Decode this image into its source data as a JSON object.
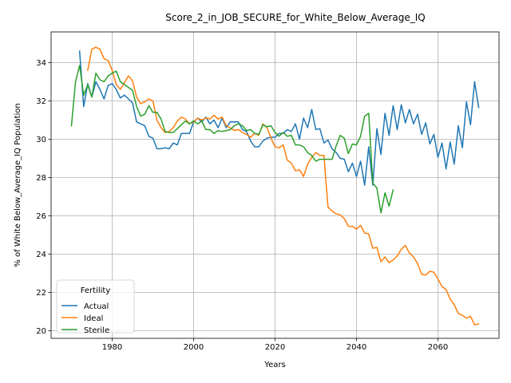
{
  "chart_data": {
    "type": "line",
    "title": "Score_2_in_JOB_SECURE_for_White_Below_Average_IQ",
    "xlabel": "Years",
    "ylabel": "% of White Below_Average_IQ Population",
    "xlim": [
      1965,
      2075
    ],
    "ylim": [
      19.6,
      35.6
    ],
    "xticks": [
      1980,
      2000,
      2020,
      2040,
      2060
    ],
    "yticks": [
      20,
      22,
      24,
      26,
      28,
      30,
      32,
      34
    ],
    "grid": true,
    "legend": {
      "title": "Fertility",
      "placement": "lower-left"
    },
    "series": [
      {
        "name": "Actual",
        "color": "#1f77b4",
        "points": [
          [
            1972,
            34.6
          ],
          [
            1973,
            31.7
          ],
          [
            1974,
            32.9
          ],
          [
            1975,
            32.2
          ],
          [
            1976,
            33.0
          ],
          [
            1977,
            32.6
          ],
          [
            1978,
            32.1
          ],
          [
            1979,
            32.8
          ],
          [
            1980,
            32.9
          ],
          [
            1981,
            32.6
          ],
          [
            1982,
            32.15
          ],
          [
            1983,
            32.3
          ],
          [
            1984,
            32.1
          ],
          [
            1985,
            31.9
          ],
          [
            1986,
            30.9
          ],
          [
            1987,
            30.8
          ],
          [
            1988,
            30.7
          ],
          [
            1989,
            30.15
          ],
          [
            1990,
            30.05
          ],
          [
            1991,
            29.5
          ],
          [
            1992,
            29.5
          ],
          [
            1993,
            29.55
          ],
          [
            1994,
            29.5
          ],
          [
            1995,
            29.8
          ],
          [
            1996,
            29.7
          ],
          [
            1997,
            30.3
          ],
          [
            1998,
            30.3
          ],
          [
            1999,
            30.3
          ],
          [
            2000,
            30.9
          ],
          [
            2001,
            31.1
          ],
          [
            2002,
            30.9
          ],
          [
            2003,
            31.15
          ],
          [
            2004,
            30.8
          ],
          [
            2005,
            31.0
          ],
          [
            2006,
            30.6
          ],
          [
            2007,
            31.1
          ],
          [
            2008,
            30.6
          ],
          [
            2009,
            30.9
          ],
          [
            2010,
            30.9
          ],
          [
            2011,
            30.9
          ],
          [
            2012,
            30.5
          ],
          [
            2013,
            30.4
          ],
          [
            2014,
            29.9
          ],
          [
            2015,
            29.6
          ],
          [
            2016,
            29.6
          ],
          [
            2017,
            29.9
          ],
          [
            2018,
            30.05
          ],
          [
            2019,
            30.1
          ],
          [
            2020,
            30.1
          ],
          [
            2021,
            30.3
          ],
          [
            2022,
            30.3
          ],
          [
            2023,
            30.5
          ],
          [
            2024,
            30.4
          ],
          [
            2025,
            30.8
          ],
          [
            2026,
            30.0
          ],
          [
            2027,
            31.1
          ],
          [
            2028,
            30.6
          ],
          [
            2029,
            31.55
          ],
          [
            2030,
            30.5
          ],
          [
            2031,
            30.55
          ],
          [
            2032,
            29.8
          ],
          [
            2033,
            29.95
          ],
          [
            2034,
            29.5
          ],
          [
            2035,
            29.3
          ],
          [
            2036,
            29.0
          ],
          [
            2037,
            28.95
          ],
          [
            2038,
            28.3
          ],
          [
            2039,
            28.75
          ],
          [
            2040,
            28.05
          ],
          [
            2041,
            28.85
          ],
          [
            2042,
            27.6
          ],
          [
            2043,
            29.6
          ],
          [
            2044,
            27.6
          ],
          [
            2045,
            30.55
          ],
          [
            2046,
            29.2
          ],
          [
            2047,
            31.35
          ],
          [
            2048,
            30.2
          ],
          [
            2049,
            31.75
          ],
          [
            2050,
            30.5
          ],
          [
            2051,
            31.8
          ],
          [
            2052,
            30.85
          ],
          [
            2053,
            31.55
          ],
          [
            2054,
            30.8
          ],
          [
            2055,
            31.3
          ],
          [
            2056,
            30.25
          ],
          [
            2057,
            30.85
          ],
          [
            2058,
            29.75
          ],
          [
            2059,
            30.25
          ],
          [
            2060,
            29.05
          ],
          [
            2061,
            29.8
          ],
          [
            2062,
            28.45
          ],
          [
            2063,
            29.85
          ],
          [
            2064,
            28.7
          ],
          [
            2065,
            30.7
          ],
          [
            2066,
            29.55
          ],
          [
            2067,
            31.95
          ],
          [
            2068,
            30.75
          ],
          [
            2069,
            33.0
          ],
          [
            2070,
            31.65
          ]
        ]
      },
      {
        "name": "Ideal",
        "color": "#ff7f0e",
        "points": [
          [
            1974,
            33.6
          ],
          [
            1975,
            34.7
          ],
          [
            1976,
            34.8
          ],
          [
            1977,
            34.7
          ],
          [
            1978,
            34.2
          ],
          [
            1979,
            34.1
          ],
          [
            1980,
            33.6
          ],
          [
            1981,
            32.85
          ],
          [
            1982,
            32.6
          ],
          [
            1983,
            32.95
          ],
          [
            1984,
            33.3
          ],
          [
            1985,
            33.05
          ],
          [
            1986,
            32.2
          ],
          [
            1987,
            31.85
          ],
          [
            1988,
            31.95
          ],
          [
            1989,
            32.1
          ],
          [
            1990,
            32.0
          ],
          [
            1991,
            31.0
          ],
          [
            1992,
            30.6
          ],
          [
            1993,
            30.35
          ],
          [
            1994,
            30.4
          ],
          [
            1995,
            30.6
          ],
          [
            1996,
            30.95
          ],
          [
            1997,
            31.15
          ],
          [
            1998,
            31.05
          ],
          [
            1999,
            30.8
          ],
          [
            2000,
            30.9
          ],
          [
            2001,
            31.1
          ],
          [
            2002,
            31.0
          ],
          [
            2003,
            31.1
          ],
          [
            2004,
            31.05
          ],
          [
            2005,
            31.25
          ],
          [
            2006,
            31.05
          ],
          [
            2007,
            31.15
          ],
          [
            2008,
            30.7
          ],
          [
            2009,
            30.6
          ],
          [
            2010,
            30.45
          ],
          [
            2011,
            30.5
          ],
          [
            2012,
            30.35
          ],
          [
            2013,
            30.25
          ],
          [
            2014,
            30.1
          ],
          [
            2015,
            30.3
          ],
          [
            2016,
            30.2
          ],
          [
            2017,
            30.8
          ],
          [
            2018,
            30.6
          ],
          [
            2019,
            30.05
          ],
          [
            2020,
            29.6
          ],
          [
            2021,
            29.55
          ],
          [
            2022,
            29.7
          ],
          [
            2023,
            28.9
          ],
          [
            2024,
            28.75
          ],
          [
            2025,
            28.35
          ],
          [
            2026,
            28.4
          ],
          [
            2027,
            28.05
          ],
          [
            2028,
            28.7
          ],
          [
            2029,
            29.05
          ],
          [
            2030,
            29.3
          ],
          [
            2031,
            29.15
          ],
          [
            2032,
            29.15
          ],
          [
            2033,
            26.45
          ],
          [
            2034,
            26.25
          ],
          [
            2035,
            26.1
          ],
          [
            2036,
            26.05
          ],
          [
            2037,
            25.85
          ],
          [
            2038,
            25.45
          ],
          [
            2039,
            25.45
          ],
          [
            2040,
            25.3
          ],
          [
            2041,
            25.5
          ],
          [
            2042,
            25.1
          ],
          [
            2043,
            25.05
          ],
          [
            2044,
            24.3
          ],
          [
            2045,
            24.35
          ],
          [
            2046,
            23.6
          ],
          [
            2047,
            23.85
          ],
          [
            2048,
            23.55
          ],
          [
            2049,
            23.7
          ],
          [
            2050,
            23.9
          ],
          [
            2051,
            24.25
          ],
          [
            2052,
            24.45
          ],
          [
            2053,
            24.05
          ],
          [
            2054,
            23.85
          ],
          [
            2055,
            23.5
          ],
          [
            2056,
            22.95
          ],
          [
            2057,
            22.9
          ],
          [
            2058,
            23.1
          ],
          [
            2059,
            23.05
          ],
          [
            2060,
            22.7
          ],
          [
            2061,
            22.3
          ],
          [
            2062,
            22.15
          ],
          [
            2063,
            21.65
          ],
          [
            2064,
            21.35
          ],
          [
            2065,
            20.9
          ],
          [
            2066,
            20.8
          ],
          [
            2067,
            20.65
          ],
          [
            2068,
            20.75
          ],
          [
            2069,
            20.3
          ],
          [
            2070,
            20.35
          ]
        ]
      },
      {
        "name": "Sterile",
        "color": "#2ca02c",
        "points": [
          [
            1970,
            30.7
          ],
          [
            1971,
            33.0
          ],
          [
            1972,
            33.85
          ],
          [
            1973,
            32.3
          ],
          [
            1974,
            32.85
          ],
          [
            1975,
            32.2
          ],
          [
            1976,
            33.45
          ],
          [
            1977,
            33.1
          ],
          [
            1978,
            33.0
          ],
          [
            1979,
            33.3
          ],
          [
            1980,
            33.45
          ],
          [
            1981,
            33.55
          ],
          [
            1982,
            33.0
          ],
          [
            1983,
            32.85
          ],
          [
            1984,
            32.7
          ],
          [
            1985,
            32.55
          ],
          [
            1986,
            31.7
          ],
          [
            1987,
            31.2
          ],
          [
            1988,
            31.3
          ],
          [
            1989,
            31.75
          ],
          [
            1990,
            31.4
          ],
          [
            1991,
            31.4
          ],
          [
            1992,
            31.05
          ],
          [
            1993,
            30.4
          ],
          [
            1994,
            30.35
          ],
          [
            1995,
            30.35
          ],
          [
            1996,
            30.55
          ],
          [
            1997,
            30.75
          ],
          [
            1998,
            30.95
          ],
          [
            1999,
            30.8
          ],
          [
            2000,
            30.95
          ],
          [
            2001,
            30.8
          ],
          [
            2002,
            30.95
          ],
          [
            2003,
            30.5
          ],
          [
            2004,
            30.5
          ],
          [
            2005,
            30.3
          ],
          [
            2006,
            30.45
          ],
          [
            2007,
            30.4
          ],
          [
            2008,
            30.45
          ],
          [
            2009,
            30.5
          ],
          [
            2010,
            30.7
          ],
          [
            2011,
            30.8
          ],
          [
            2012,
            30.7
          ],
          [
            2013,
            30.45
          ],
          [
            2014,
            30.5
          ],
          [
            2015,
            30.3
          ],
          [
            2016,
            30.25
          ],
          [
            2017,
            30.75
          ],
          [
            2018,
            30.65
          ],
          [
            2019,
            30.7
          ],
          [
            2020,
            30.35
          ],
          [
            2021,
            30.15
          ],
          [
            2022,
            30.35
          ],
          [
            2023,
            30.15
          ],
          [
            2024,
            30.2
          ],
          [
            2025,
            29.7
          ],
          [
            2026,
            29.7
          ],
          [
            2027,
            29.6
          ],
          [
            2028,
            29.3
          ],
          [
            2029,
            29.15
          ],
          [
            2030,
            28.85
          ],
          [
            2031,
            28.95
          ],
          [
            2032,
            28.95
          ],
          [
            2033,
            28.95
          ],
          [
            2034,
            28.95
          ],
          [
            2035,
            29.65
          ],
          [
            2036,
            30.2
          ],
          [
            2037,
            30.05
          ],
          [
            2038,
            29.25
          ],
          [
            2039,
            29.75
          ],
          [
            2040,
            29.7
          ],
          [
            2041,
            30.15
          ],
          [
            2042,
            31.2
          ],
          [
            2043,
            31.35
          ],
          [
            2044,
            27.7
          ],
          [
            2045,
            27.45
          ],
          [
            2046,
            26.15
          ],
          [
            2047,
            27.2
          ],
          [
            2048,
            26.5
          ],
          [
            2049,
            27.35
          ]
        ]
      }
    ]
  }
}
